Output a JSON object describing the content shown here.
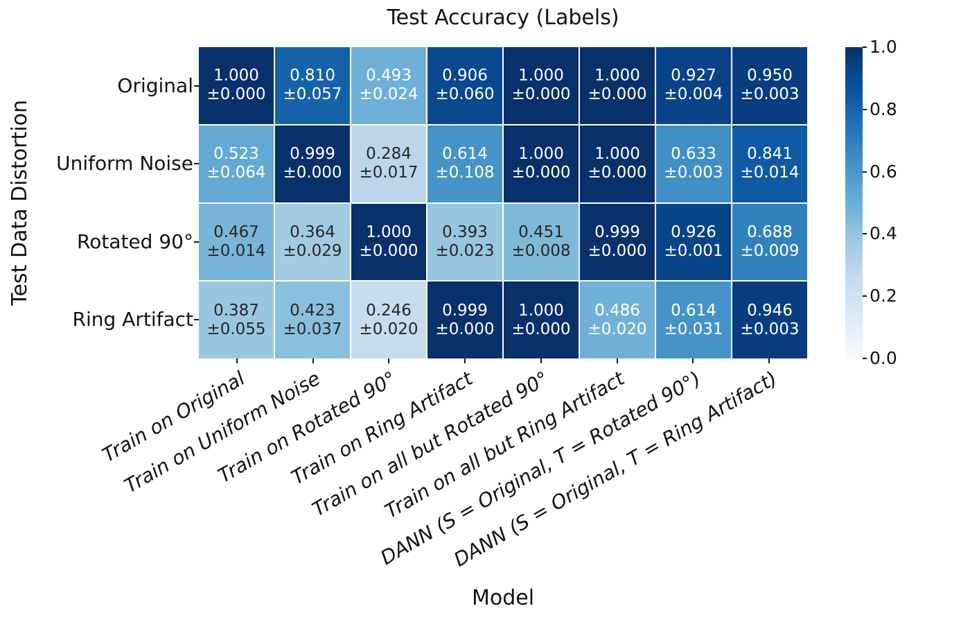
{
  "chart_data": {
    "type": "heatmap",
    "title": "Test Accuracy (Labels)",
    "xlabel": "Model",
    "ylabel": "Test Data Distortion",
    "rows": [
      "Original",
      "Uniform Noise",
      "Rotated 90°",
      "Ring Artifact"
    ],
    "columns": [
      "Train on Original",
      "Train on Uniform Noise",
      "Train on Rotated 90°",
      "Train on Ring Artifact",
      "Train on all but Rotated 90°",
      "Train on all but Ring Artifact",
      "DANN (S = Original, T = Rotated 90°)",
      "DANN (S = Original, T = Ring Artifact)"
    ],
    "values": [
      [
        1.0,
        0.81,
        0.493,
        0.906,
        1.0,
        1.0,
        0.927,
        0.95
      ],
      [
        0.523,
        0.999,
        0.284,
        0.614,
        1.0,
        1.0,
        0.633,
        0.841
      ],
      [
        0.467,
        0.364,
        1.0,
        0.393,
        0.451,
        0.999,
        0.926,
        0.688
      ],
      [
        0.387,
        0.423,
        0.246,
        0.999,
        1.0,
        0.486,
        0.614,
        0.946
      ]
    ],
    "stds": [
      [
        0.0,
        0.057,
        0.024,
        0.06,
        0.0,
        0.0,
        0.004,
        0.003
      ],
      [
        0.064,
        0.0,
        0.017,
        0.108,
        0.0,
        0.0,
        0.003,
        0.014
      ],
      [
        0.014,
        0.029,
        0.0,
        0.023,
        0.008,
        0.0,
        0.001,
        0.009
      ],
      [
        0.055,
        0.037,
        0.02,
        0.0,
        0.0,
        0.02,
        0.031,
        0.003
      ]
    ],
    "std_prefix": "±",
    "vmin": 0.0,
    "vmax": 1.0,
    "colormap": "Blues",
    "colorbar_ticks": [
      "0.0",
      "0.2",
      "0.4",
      "0.6",
      "0.8",
      "1.0"
    ],
    "grid": false,
    "legend_position": "colorbar-right"
  },
  "colors": {
    "cmap_stops": [
      "#f7fbff",
      "#deebf7",
      "#c6dbef",
      "#9ecae1",
      "#6baed6",
      "#4292c6",
      "#2171b5",
      "#08519c",
      "#08306b"
    ],
    "cell_text_light": "#ffffff",
    "cell_text_dark": "#262626",
    "axis_text": "#131313",
    "grid_line": "#ffffff"
  }
}
